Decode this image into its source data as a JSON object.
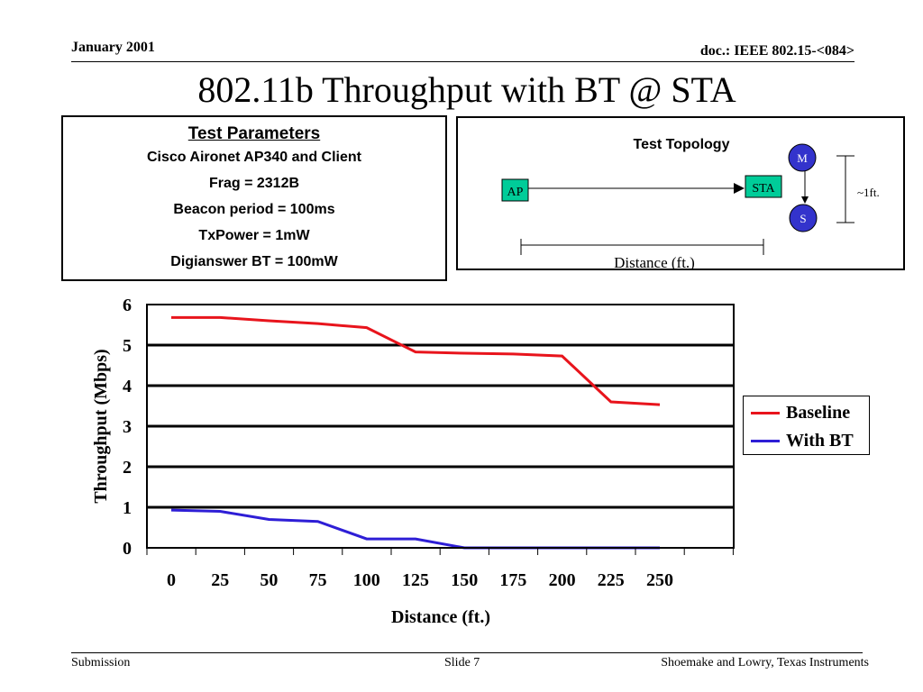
{
  "header": {
    "date": "January 2001",
    "doc": "doc.: IEEE 802.15-<084>"
  },
  "slide_title": "802.11b Throughput with BT @ STA",
  "test_parameters": {
    "heading": "Test Parameters",
    "lines": [
      "Cisco Aironet AP340 and Client",
      "Frag = 2312B",
      "Beacon period = 100ms",
      "TxPower = 1mW",
      "Digianswer BT = 100mW"
    ]
  },
  "topology": {
    "title": "Test Topology",
    "ap_label": "AP",
    "sta_label": "STA",
    "master_label": "M",
    "slave_label": "S",
    "height_label": "~1ft.",
    "distance_label": "Distance (ft.)",
    "box_color": "#00cc99",
    "node_color": "#3333cc"
  },
  "chart_data": {
    "type": "line",
    "xlabel": "Distance (ft.)",
    "ylabel": "Throughput (Mbps)",
    "x": [
      0,
      25,
      50,
      75,
      100,
      125,
      150,
      175,
      200,
      225,
      250
    ],
    "x_tick_labels": [
      "0",
      "25",
      "50",
      "75",
      "100",
      "125",
      "150",
      "175",
      "200",
      "225",
      "250"
    ],
    "y_tick_labels": [
      "0",
      "1",
      "2",
      "3",
      "4",
      "5",
      "6"
    ],
    "ylim": [
      0,
      6
    ],
    "grid": true,
    "legend": "right",
    "series": [
      {
        "name": "Baseline",
        "color": "#e8141c",
        "values": [
          5.68,
          5.68,
          5.6,
          5.53,
          5.43,
          4.83,
          4.8,
          4.78,
          4.73,
          3.6,
          3.53
        ]
      },
      {
        "name": "With BT",
        "color": "#2e1ed6",
        "values": [
          0.93,
          0.9,
          0.7,
          0.65,
          0.22,
          0.22,
          0.0,
          0.0,
          0.0,
          0.0,
          0.0
        ]
      }
    ]
  },
  "footer": {
    "left": "Submission",
    "center": "Slide 7",
    "right": "Shoemake and Lowry, Texas Instruments"
  }
}
